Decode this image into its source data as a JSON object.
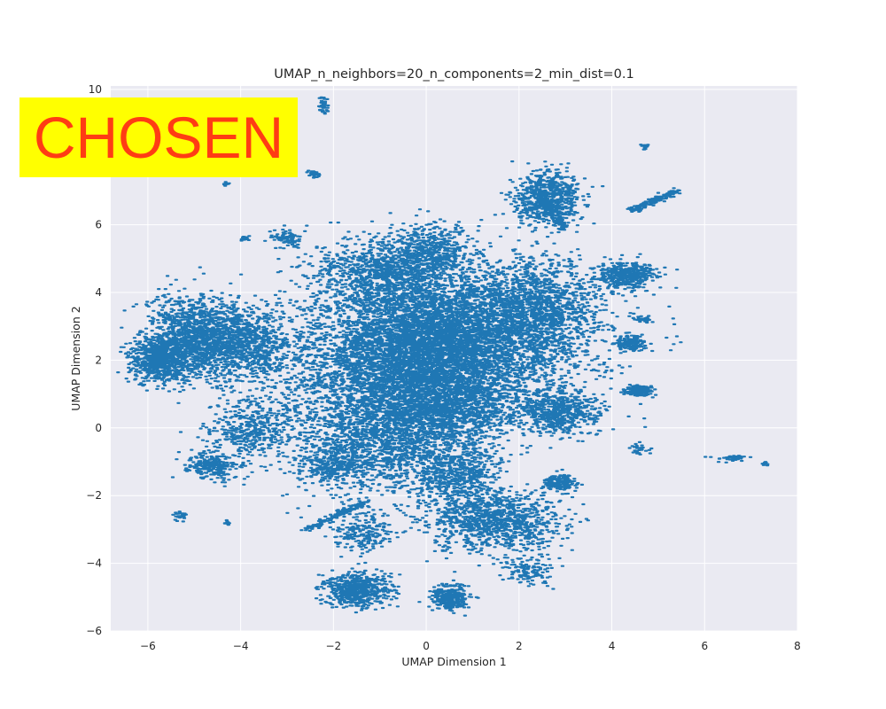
{
  "overlay": {
    "stamp_text": "CHOSEN",
    "background": "#ffff00",
    "color": "#ff3c14"
  },
  "chart_data": {
    "type": "scatter",
    "title": "UMAP_n_neighbors=20_n_components=2_min_dist=0.1",
    "xlabel": "UMAP Dimension 1",
    "ylabel": "UMAP Dimension 2",
    "xlim": [
      -6.8,
      8.0
    ],
    "ylim": [
      -6.0,
      10.1
    ],
    "xticks": [
      -6,
      -4,
      -2,
      0,
      2,
      4,
      6,
      8
    ],
    "xtick_labels": [
      "−6",
      "−4",
      "−2",
      "0",
      "2",
      "4",
      "6",
      "8"
    ],
    "yticks": [
      -6,
      -4,
      -2,
      0,
      2,
      4,
      6,
      10
    ],
    "ytick_labels": [
      "−6",
      "−4",
      "−2",
      "0",
      "2",
      "4",
      "6",
      "10"
    ],
    "grid": true,
    "background": "#eaeaf2",
    "point_color": "#1f77b4",
    "clusters": [
      {
        "cx": 0.0,
        "cy": 2.3,
        "sx": 1.05,
        "sy": 1.05,
        "n": 3600
      },
      {
        "cx": -1.0,
        "cy": 1.5,
        "sx": 1.2,
        "sy": 1.5,
        "n": 2400
      },
      {
        "cx": 1.2,
        "cy": 2.6,
        "sx": 1.3,
        "sy": 0.9,
        "n": 2200
      },
      {
        "cx": 2.3,
        "cy": 3.6,
        "sx": 0.7,
        "sy": 0.7,
        "n": 1200
      },
      {
        "cx": -0.9,
        "cy": 4.6,
        "sx": 0.75,
        "sy": 0.5,
        "n": 900
      },
      {
        "cx": 0.1,
        "cy": 5.2,
        "sx": 0.45,
        "sy": 0.4,
        "n": 500
      },
      {
        "cx": -0.7,
        "cy": -0.3,
        "sx": 0.9,
        "sy": 0.8,
        "n": 1300
      },
      {
        "cx": 0.6,
        "cy": 0.6,
        "sx": 0.8,
        "sy": 0.6,
        "n": 900
      },
      {
        "cx": -4.8,
        "cy": 2.7,
        "sx": 0.6,
        "sy": 0.55,
        "n": 1500
      },
      {
        "cx": -5.7,
        "cy": 2.0,
        "sx": 0.35,
        "sy": 0.35,
        "n": 700
      },
      {
        "cx": -3.7,
        "cy": 2.4,
        "sx": 0.45,
        "sy": 0.5,
        "n": 500
      },
      {
        "cx": 2.6,
        "cy": 6.8,
        "sx": 0.35,
        "sy": 0.4,
        "n": 700
      },
      {
        "cx": 2.8,
        "cy": 0.5,
        "sx": 0.45,
        "sy": 0.35,
        "n": 600
      },
      {
        "cx": 1.5,
        "cy": -2.8,
        "sx": 0.7,
        "sy": 0.45,
        "n": 1000
      },
      {
        "cx": 0.7,
        "cy": -1.5,
        "sx": 0.45,
        "sy": 0.5,
        "n": 500
      },
      {
        "cx": -1.5,
        "cy": -4.8,
        "sx": 0.35,
        "sy": 0.25,
        "n": 600
      },
      {
        "cx": 0.5,
        "cy": -5.0,
        "sx": 0.2,
        "sy": 0.2,
        "n": 300
      },
      {
        "cx": 4.3,
        "cy": 4.5,
        "sx": 0.3,
        "sy": 0.2,
        "n": 400
      },
      {
        "cx": 4.4,
        "cy": 2.5,
        "sx": 0.15,
        "sy": 0.12,
        "n": 150
      },
      {
        "cx": 4.6,
        "cy": 1.1,
        "sx": 0.15,
        "sy": 0.08,
        "n": 150
      },
      {
        "cx": -3.8,
        "cy": 0.0,
        "sx": 0.5,
        "sy": 0.4,
        "n": 400
      },
      {
        "cx": -4.6,
        "cy": -1.1,
        "sx": 0.3,
        "sy": 0.2,
        "n": 250
      },
      {
        "cx": -2.0,
        "cy": -1.1,
        "sx": 0.35,
        "sy": 0.3,
        "n": 300
      },
      {
        "cx": 2.9,
        "cy": -1.6,
        "sx": 0.18,
        "sy": 0.12,
        "n": 150
      },
      {
        "cx": -1.4,
        "cy": -3.1,
        "sx": 0.3,
        "sy": 0.3,
        "n": 200
      },
      {
        "cx": -3.0,
        "cy": 5.6,
        "sx": 0.15,
        "sy": 0.15,
        "n": 90
      },
      {
        "cx": -2.2,
        "cy": 9.5,
        "sx": 0.06,
        "sy": 0.12,
        "n": 50
      },
      {
        "cx": -2.4,
        "cy": 7.5,
        "sx": 0.06,
        "sy": 0.05,
        "n": 30
      },
      {
        "cx": -5.3,
        "cy": -2.6,
        "sx": 0.08,
        "sy": 0.06,
        "n": 30
      },
      {
        "cx": 6.6,
        "cy": -0.9,
        "sx": 0.15,
        "sy": 0.04,
        "n": 40
      },
      {
        "cx": 7.3,
        "cy": -1.05,
        "sx": 0.04,
        "sy": 0.03,
        "n": 10
      },
      {
        "cx": -3.9,
        "cy": 5.6,
        "sx": 0.05,
        "sy": 0.04,
        "n": 20
      },
      {
        "cx": 2.2,
        "cy": -4.2,
        "sx": 0.3,
        "sy": 0.2,
        "n": 120
      },
      {
        "cx": 4.7,
        "cy": 3.2,
        "sx": 0.1,
        "sy": 0.06,
        "n": 30
      },
      {
        "cx": 4.6,
        "cy": -0.6,
        "sx": 0.1,
        "sy": 0.08,
        "n": 30
      },
      {
        "cx": 4.7,
        "cy": 8.3,
        "sx": 0.05,
        "sy": 0.05,
        "n": 20
      },
      {
        "cx": -4.3,
        "cy": 7.2,
        "sx": 0.03,
        "sy": 0.03,
        "n": 10
      },
      {
        "cx": -4.3,
        "cy": -2.8,
        "sx": 0.03,
        "sy": 0.03,
        "n": 10
      }
    ],
    "streaks": [
      {
        "x0": 4.4,
        "y0": 6.4,
        "x1": 5.4,
        "y1": 7.0,
        "n": 160
      },
      {
        "x0": -2.6,
        "y0": -3.0,
        "x1": -1.3,
        "y1": -2.2,
        "n": 120
      },
      {
        "x0": -6.0,
        "y0": 1.7,
        "x1": -5.5,
        "y1": 2.6,
        "n": 120
      },
      {
        "x0": 3.0,
        "y0": 5.9,
        "x1": 2.4,
        "y1": 6.9,
        "n": 120
      }
    ]
  }
}
